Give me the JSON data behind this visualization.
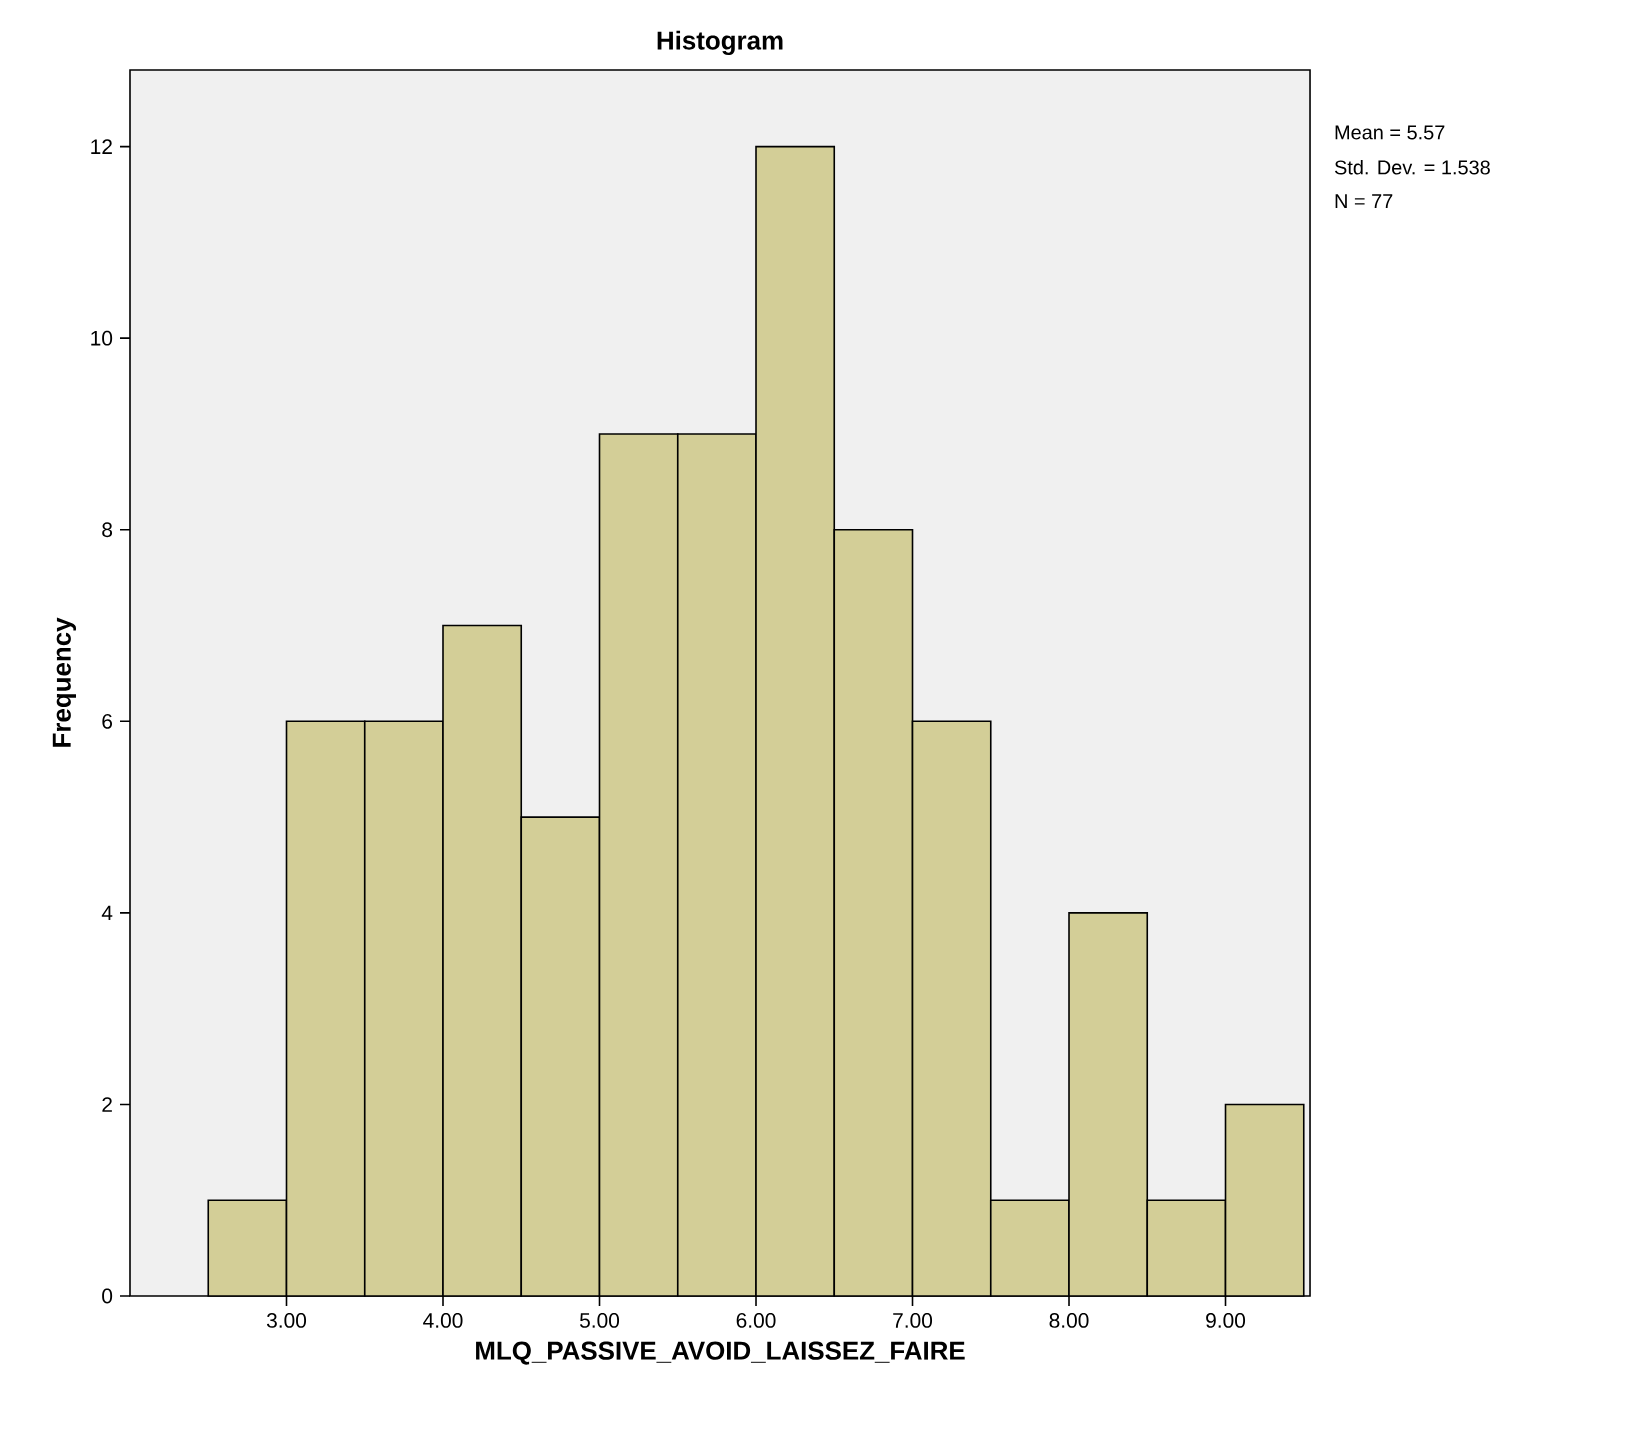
{
  "chart_data": {
    "type": "histogram",
    "title": "Histogram",
    "xlabel": "MLQ_PASSIVE_AVOID_LAISSEZ_FAIRE",
    "ylabel": "Frequency",
    "bins": [
      2.5,
      3.0,
      3.5,
      4.0,
      4.5,
      5.0,
      5.5,
      6.0,
      6.5,
      7.0,
      7.5,
      8.0,
      8.5,
      9.0,
      9.5
    ],
    "values": [
      1,
      6,
      6,
      7,
      5,
      9,
      9,
      12,
      8,
      6,
      1,
      4,
      1,
      2
    ],
    "color": "#d3ce97",
    "xlim": [
      2.0,
      9.54
    ],
    "ylim": [
      0,
      12.8
    ],
    "xticks": [
      {
        "value": 3,
        "label": "3.00"
      },
      {
        "value": 4,
        "label": "4.00"
      },
      {
        "value": 5,
        "label": "5.00"
      },
      {
        "value": 6,
        "label": "6.00"
      },
      {
        "value": 7,
        "label": "7.00"
      },
      {
        "value": 8,
        "label": "8.00"
      },
      {
        "value": 9,
        "label": "9.00"
      }
    ],
    "yticks": [
      0,
      2,
      4,
      6,
      8,
      10,
      12
    ],
    "annotations": [
      "Mean = 5.57",
      "Std. Dev. = 1.538",
      "N = 77"
    ]
  }
}
